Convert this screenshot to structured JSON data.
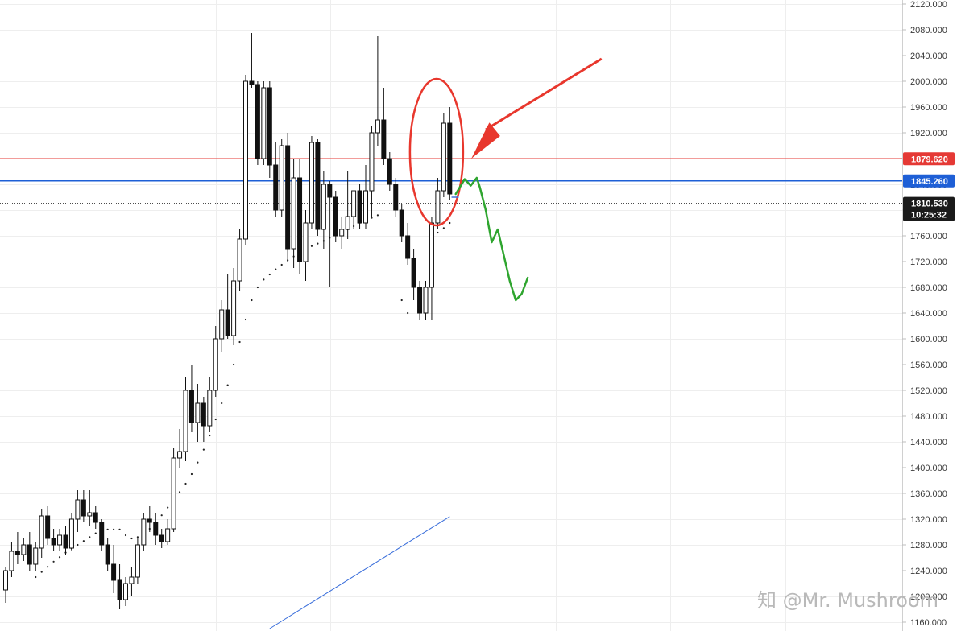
{
  "chart_data": {
    "type": "candlestick",
    "title": "",
    "xlabel": "",
    "ylabel": "",
    "ylim": [
      1150,
      2125
    ],
    "y_ticks": [
      1160,
      1200,
      1240,
      1280,
      1320,
      1360,
      1400,
      1440,
      1480,
      1520,
      1560,
      1600,
      1640,
      1680,
      1720,
      1760,
      1800,
      1840,
      1880,
      1920,
      1960,
      2000,
      2040,
      2080,
      2120
    ],
    "tick_labels": [
      "1160.000",
      "1200.000",
      "1240.000",
      "1280.000",
      "1320.000",
      "1360.000",
      "1400.000",
      "1440.000",
      "1480.000",
      "1520.000",
      "1560.000",
      "1600.000",
      "1640.000",
      "1680.000",
      "1720.000",
      "1760.000",
      "1800.000",
      "1840.000",
      "1880.000",
      "1920.000",
      "1960.000",
      "2000.000",
      "2040.000",
      "2080.000",
      "2120.000"
    ],
    "grid": true,
    "candles": [
      [
        1210,
        1245,
        1190,
        1240
      ],
      [
        1240,
        1285,
        1230,
        1270
      ],
      [
        1270,
        1300,
        1250,
        1265
      ],
      [
        1265,
        1290,
        1255,
        1280
      ],
      [
        1280,
        1300,
        1240,
        1250
      ],
      [
        1250,
        1285,
        1240,
        1275
      ],
      [
        1275,
        1335,
        1260,
        1325
      ],
      [
        1325,
        1340,
        1280,
        1290
      ],
      [
        1290,
        1305,
        1270,
        1280
      ],
      [
        1280,
        1305,
        1270,
        1295
      ],
      [
        1295,
        1310,
        1265,
        1275
      ],
      [
        1275,
        1330,
        1270,
        1320
      ],
      [
        1320,
        1365,
        1300,
        1350
      ],
      [
        1350,
        1365,
        1315,
        1325
      ],
      [
        1325,
        1365,
        1310,
        1330
      ],
      [
        1330,
        1340,
        1305,
        1315
      ],
      [
        1315,
        1320,
        1270,
        1280
      ],
      [
        1280,
        1290,
        1240,
        1250
      ],
      [
        1250,
        1280,
        1205,
        1225
      ],
      [
        1225,
        1250,
        1180,
        1195
      ],
      [
        1195,
        1230,
        1185,
        1220
      ],
      [
        1220,
        1245,
        1200,
        1230
      ],
      [
        1230,
        1290,
        1220,
        1280
      ],
      [
        1280,
        1330,
        1270,
        1320
      ],
      [
        1320,
        1340,
        1300,
        1315
      ],
      [
        1315,
        1330,
        1280,
        1295
      ],
      [
        1295,
        1305,
        1275,
        1285
      ],
      [
        1285,
        1320,
        1280,
        1305
      ],
      [
        1305,
        1430,
        1300,
        1415
      ],
      [
        1415,
        1460,
        1400,
        1425
      ],
      [
        1425,
        1540,
        1410,
        1520
      ],
      [
        1520,
        1560,
        1455,
        1470
      ],
      [
        1470,
        1530,
        1440,
        1500
      ],
      [
        1500,
        1510,
        1440,
        1465
      ],
      [
        1465,
        1540,
        1455,
        1520
      ],
      [
        1520,
        1620,
        1510,
        1600
      ],
      [
        1600,
        1660,
        1580,
        1645
      ],
      [
        1645,
        1700,
        1600,
        1605
      ],
      [
        1605,
        1710,
        1590,
        1690
      ],
      [
        1690,
        1770,
        1675,
        1755
      ],
      [
        1755,
        2010,
        1745,
        2000
      ],
      [
        2000,
        2075,
        1990,
        1995
      ],
      [
        1995,
        2000,
        1870,
        1880
      ],
      [
        1880,
        2000,
        1870,
        1990
      ],
      [
        1990,
        2000,
        1850,
        1870
      ],
      [
        1870,
        1905,
        1790,
        1800
      ],
      [
        1800,
        1910,
        1790,
        1900
      ],
      [
        1900,
        1920,
        1720,
        1740
      ],
      [
        1740,
        1880,
        1710,
        1850
      ],
      [
        1850,
        1880,
        1700,
        1720
      ],
      [
        1720,
        1800,
        1690,
        1780
      ],
      [
        1780,
        1915,
        1770,
        1905
      ],
      [
        1905,
        1910,
        1760,
        1770
      ],
      [
        1770,
        1860,
        1740,
        1840
      ],
      [
        1840,
        1845,
        1680,
        1820
      ],
      [
        1820,
        1830,
        1750,
        1760
      ],
      [
        1760,
        1790,
        1740,
        1770
      ],
      [
        1770,
        1860,
        1755,
        1790
      ],
      [
        1790,
        1830,
        1770,
        1830
      ],
      [
        1830,
        1840,
        1770,
        1780
      ],
      [
        1780,
        1870,
        1770,
        1830
      ],
      [
        1830,
        1930,
        1790,
        1920
      ],
      [
        1920,
        2070,
        1900,
        1940
      ],
      [
        1940,
        1990,
        1870,
        1880
      ],
      [
        1880,
        1890,
        1830,
        1840
      ],
      [
        1840,
        1850,
        1790,
        1800
      ],
      [
        1800,
        1810,
        1750,
        1760
      ],
      [
        1760,
        1780,
        1715,
        1725
      ],
      [
        1725,
        1740,
        1660,
        1680
      ],
      [
        1680,
        1690,
        1630,
        1640
      ],
      [
        1640,
        1690,
        1630,
        1680
      ],
      [
        1680,
        1790,
        1630,
        1780
      ],
      [
        1780,
        1850,
        1770,
        1830
      ],
      [
        1830,
        1950,
        1820,
        1935
      ],
      [
        1935,
        1960,
        1815,
        1825
      ]
    ],
    "sar_points": [
      [
        5,
        1230
      ],
      [
        6,
        1238
      ],
      [
        7,
        1246
      ],
      [
        8,
        1254
      ],
      [
        9,
        1261
      ],
      [
        10,
        1268
      ],
      [
        11,
        1274
      ],
      [
        12,
        1280
      ],
      [
        13,
        1286
      ],
      [
        14,
        1292
      ],
      [
        15,
        1298
      ],
      [
        16,
        1304
      ],
      [
        17,
        1304
      ],
      [
        18,
        1304
      ],
      [
        19,
        1304
      ],
      [
        20,
        1295
      ],
      [
        21,
        1290
      ],
      [
        22,
        1292
      ],
      [
        23,
        1298
      ],
      [
        24,
        1305
      ],
      [
        25,
        1315
      ],
      [
        26,
        1326
      ],
      [
        27,
        1338
      ],
      [
        28,
        1350
      ],
      [
        29,
        1362
      ],
      [
        30,
        1375
      ],
      [
        31,
        1390
      ],
      [
        32,
        1408
      ],
      [
        33,
        1428
      ],
      [
        34,
        1450
      ],
      [
        35,
        1475
      ],
      [
        36,
        1500
      ],
      [
        37,
        1528
      ],
      [
        38,
        1560
      ],
      [
        39,
        1595
      ],
      [
        40,
        1630
      ],
      [
        41,
        1660
      ],
      [
        42,
        1680
      ],
      [
        43,
        1692
      ],
      [
        44,
        1700
      ],
      [
        45,
        1708
      ],
      [
        46,
        1715
      ],
      [
        47,
        1722
      ],
      [
        48,
        1728
      ],
      [
        49,
        1734
      ],
      [
        50,
        1739
      ],
      [
        51,
        1744
      ],
      [
        52,
        1748
      ],
      [
        53,
        1752
      ],
      [
        54,
        1757
      ],
      [
        55,
        1761
      ],
      [
        56,
        1765
      ],
      [
        57,
        1770
      ],
      [
        58,
        1775
      ],
      [
        59,
        1780
      ],
      [
        60,
        1784
      ],
      [
        61,
        1788
      ],
      [
        62,
        1792
      ],
      [
        66,
        1660
      ],
      [
        67,
        1640
      ],
      [
        72,
        1765
      ],
      [
        73,
        1772
      ],
      [
        74,
        1780
      ]
    ],
    "ma_line": [
      [
        44,
        1150
      ],
      [
        74,
        1324
      ]
    ],
    "horizontal_levels": [
      {
        "price": 1879.62,
        "label": "1879.620",
        "color": "#e53935"
      },
      {
        "price": 1845.26,
        "label": "1845.260",
        "color": "#1e5fd6"
      }
    ],
    "current_price": {
      "price": 1810.53,
      "label": "1810.530",
      "countdown": "10:25:32"
    },
    "annotations": {
      "circle_color": "#e8372d",
      "arrow_color": "#e8372d",
      "projection_color": "#2fa52f",
      "projection_path": [
        [
          75,
          1825
        ],
        [
          76.5,
          1848
        ],
        [
          77.5,
          1838
        ],
        [
          78.5,
          1850
        ],
        [
          79,
          1836
        ],
        [
          80,
          1800
        ],
        [
          81,
          1750
        ],
        [
          82,
          1770
        ],
        [
          83,
          1730
        ],
        [
          84,
          1690
        ],
        [
          85,
          1660
        ],
        [
          86,
          1670
        ],
        [
          87,
          1695
        ]
      ]
    }
  },
  "watermark": {
    "text": "知 @Mr. Mushroom"
  }
}
